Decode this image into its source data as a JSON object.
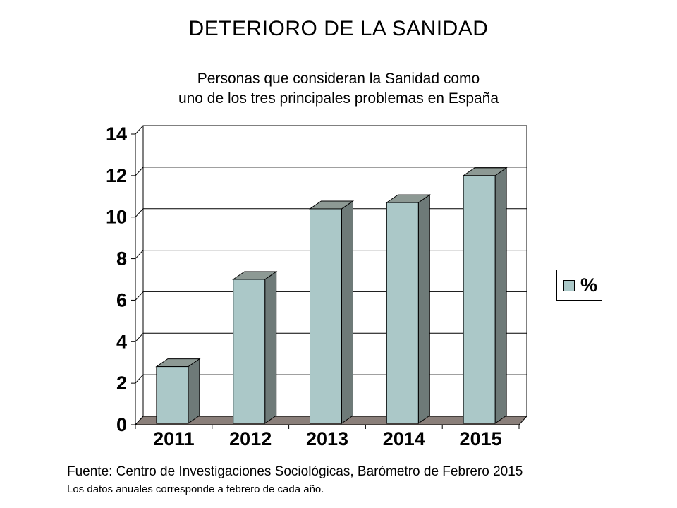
{
  "chart_data": {
    "type": "bar",
    "title": "DETERIORO DE LA SANIDAD",
    "subtitle_lines": [
      "Personas que consideran la Sanidad como",
      "uno de los tres principales problemas en España"
    ],
    "categories": [
      "2011",
      "2012",
      "2013",
      "2014",
      "2015"
    ],
    "series": [
      {
        "name": "%",
        "values": [
          2.8,
          7.0,
          10.4,
          10.7,
          12.0
        ],
        "color": "#abc8c8"
      }
    ],
    "ylim": [
      0,
      14
    ],
    "yticks": [
      0,
      2,
      4,
      6,
      8,
      10,
      12,
      14
    ],
    "grid": true,
    "legend": "right",
    "style": "3d-column"
  },
  "footer": {
    "source": "Fuente: Centro de Investigaciones Sociológicas, Barómetro de Febrero 2015",
    "note": "Los datos anuales corresponde a febrero de cada año."
  },
  "colors": {
    "bar_front": "#abc8c8",
    "bar_side": "#6e7a78",
    "bar_top": "#8d9994",
    "floor": "#8a7f7a"
  }
}
